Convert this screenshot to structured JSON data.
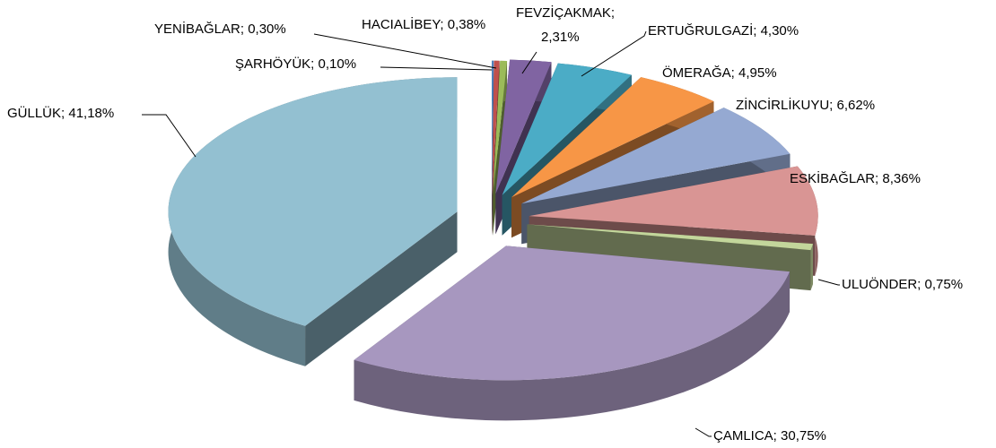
{
  "chart_data": {
    "type": "pie",
    "values": [
      0.1,
      0.3,
      0.38,
      2.31,
      4.3,
      4.95,
      6.62,
      8.36,
      0.75,
      30.75,
      41.18
    ],
    "value_labels": [
      "ŞARHÖYÜK; 0,10%",
      "YENİBAĞLAR; 0,30%",
      "HACIALİBEY; 0,38%",
      "FEVZİÇAKMAK; 2,31%",
      "ERTUĞRULGAZİ; 4,30%",
      "ÖMERAĞA; 4,95%",
      "ZİNCİRLİKUYU; 6,62%",
      "ESKİBAĞLAR; 8,36%",
      "ULUÖNDER; 0,75%",
      "ÇAMLICA; 30,75%",
      "GÜLLÜK; 41,18%"
    ],
    "colors": [
      "#4f81bd",
      "#c0504d",
      "#9bbb59",
      "#8064a2",
      "#4bacc6",
      "#f79646",
      "#95a9d2",
      "#d99594",
      "#c3d69b",
      "#a797bf",
      "#93c0d1"
    ]
  }
}
